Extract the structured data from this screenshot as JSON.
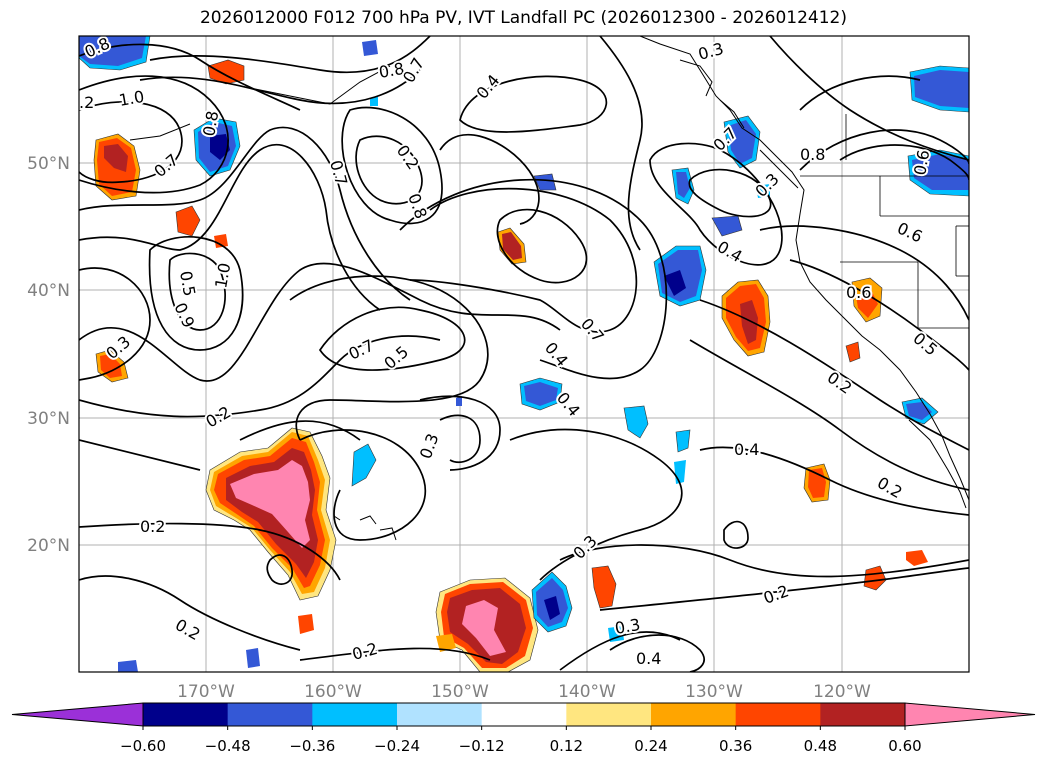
{
  "title": "2026012000 F012 700 hPa PV, IVT Landfall PC (2026012300 - 2026012412)",
  "map": {
    "lat_labels": [
      "50°N",
      "40°N",
      "30°N",
      "20°N"
    ],
    "lon_labels": [
      "170°W",
      "160°W",
      "150°W",
      "140°W",
      "130°W",
      "120°W"
    ],
    "lat_range": [
      10,
      59.5
    ],
    "lon_range": [
      -180,
      -110
    ],
    "contour_labels": [
      "0.8",
      "0.8",
      "0.7",
      "0.3",
      ".2",
      "1.0",
      "0.4",
      "0.7",
      "0.8",
      "0.6",
      "0.7",
      "0.8",
      "0.2",
      "0.8",
      "0.7",
      "0.3",
      "0.6",
      "0.5",
      "0.9",
      "1.0",
      "0.4",
      "0.6",
      "0.7",
      "0.5",
      "0.4",
      "0.3",
      "0.7",
      "0.5",
      "0.4",
      "0.2",
      "0.3",
      "0.2",
      "0.2",
      "0.2",
      "0.3",
      "0.2",
      "0.3",
      "0.4",
      "0.4",
      "0.2",
      "0.2"
    ]
  },
  "colorbar": {
    "ticks": [
      "−0.60",
      "−0.48",
      "−0.36",
      "−0.24",
      "−0.12",
      "0.12",
      "0.24",
      "0.36",
      "0.48",
      "0.60"
    ],
    "colors": [
      "#9b30d8",
      "#00008b",
      "#3458d6",
      "#00bfff",
      "#b0e2ff",
      "#ffffff",
      "#ffe680",
      "#ffa500",
      "#ff4500",
      "#b22222",
      "#ff85b0"
    ]
  }
}
